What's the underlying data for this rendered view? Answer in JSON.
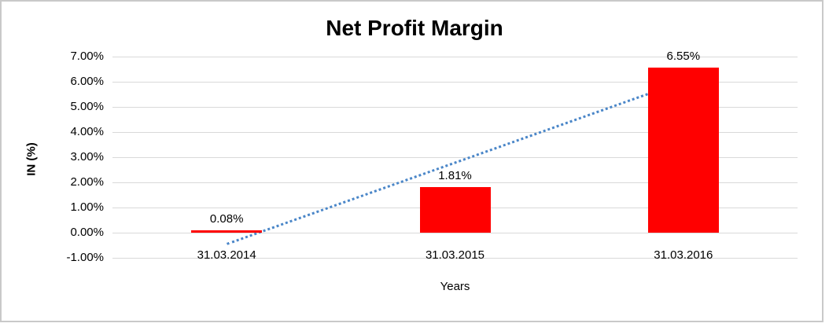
{
  "chart_data": {
    "type": "bar",
    "title": "Net Profit Margin",
    "xlabel": "Years",
    "ylabel": "IN (%)",
    "categories": [
      "31.03.2014",
      "31.03.2015",
      "31.03.2016"
    ],
    "values": [
      0.08,
      1.81,
      6.55
    ],
    "data_labels": [
      "0.08%",
      "1.81%",
      "6.55%"
    ],
    "yticks": [
      "7.00%",
      "6.00%",
      "5.00%",
      "4.00%",
      "3.00%",
      "2.00%",
      "1.00%",
      "0.00%",
      "-1.00%"
    ],
    "ylim": [
      -1,
      7
    ],
    "ytick_step": 1,
    "grid": true,
    "legend": false,
    "bar_color": "#ff0000",
    "gridline_color": "#d9d9d9",
    "trendline": {
      "type": "linear",
      "style": "dotted",
      "color": "#4a86c8",
      "start_value": -0.42,
      "end_value": 6.05
    }
  }
}
